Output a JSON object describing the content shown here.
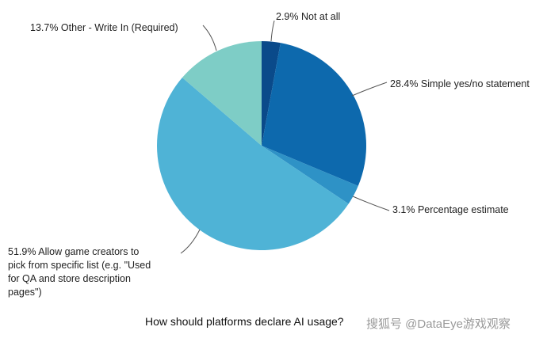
{
  "chart_data": {
    "type": "pie",
    "title": "How should platforms declare AI usage?",
    "start": "12 o'clock, clockwise",
    "slices": [
      {
        "label": "2.9% Not at all",
        "value": 2.9,
        "color": "#0a4a8a"
      },
      {
        "label": "28.4% Simple yes/no statement",
        "value": 28.4,
        "color": "#0d69ad"
      },
      {
        "label": "3.1% Percentage estimate",
        "value": 3.1,
        "color": "#2e92c6"
      },
      {
        "label": "51.9% Allow game creators to pick from specific list (e.g. \"Used for QA and store description pages\")",
        "value": 51.9,
        "color": "#4fb3d6",
        "label_lines": [
          "51.9% Allow game creators to",
          "pick from specific list (e.g. \"Used",
          "for QA and store description",
          "pages\")"
        ]
      },
      {
        "label": "13.7% Other - Write In (Required)",
        "value": 13.7,
        "color": "#7ecdc6"
      }
    ]
  },
  "watermark": "搜狐号 @DataEye游戏观察"
}
